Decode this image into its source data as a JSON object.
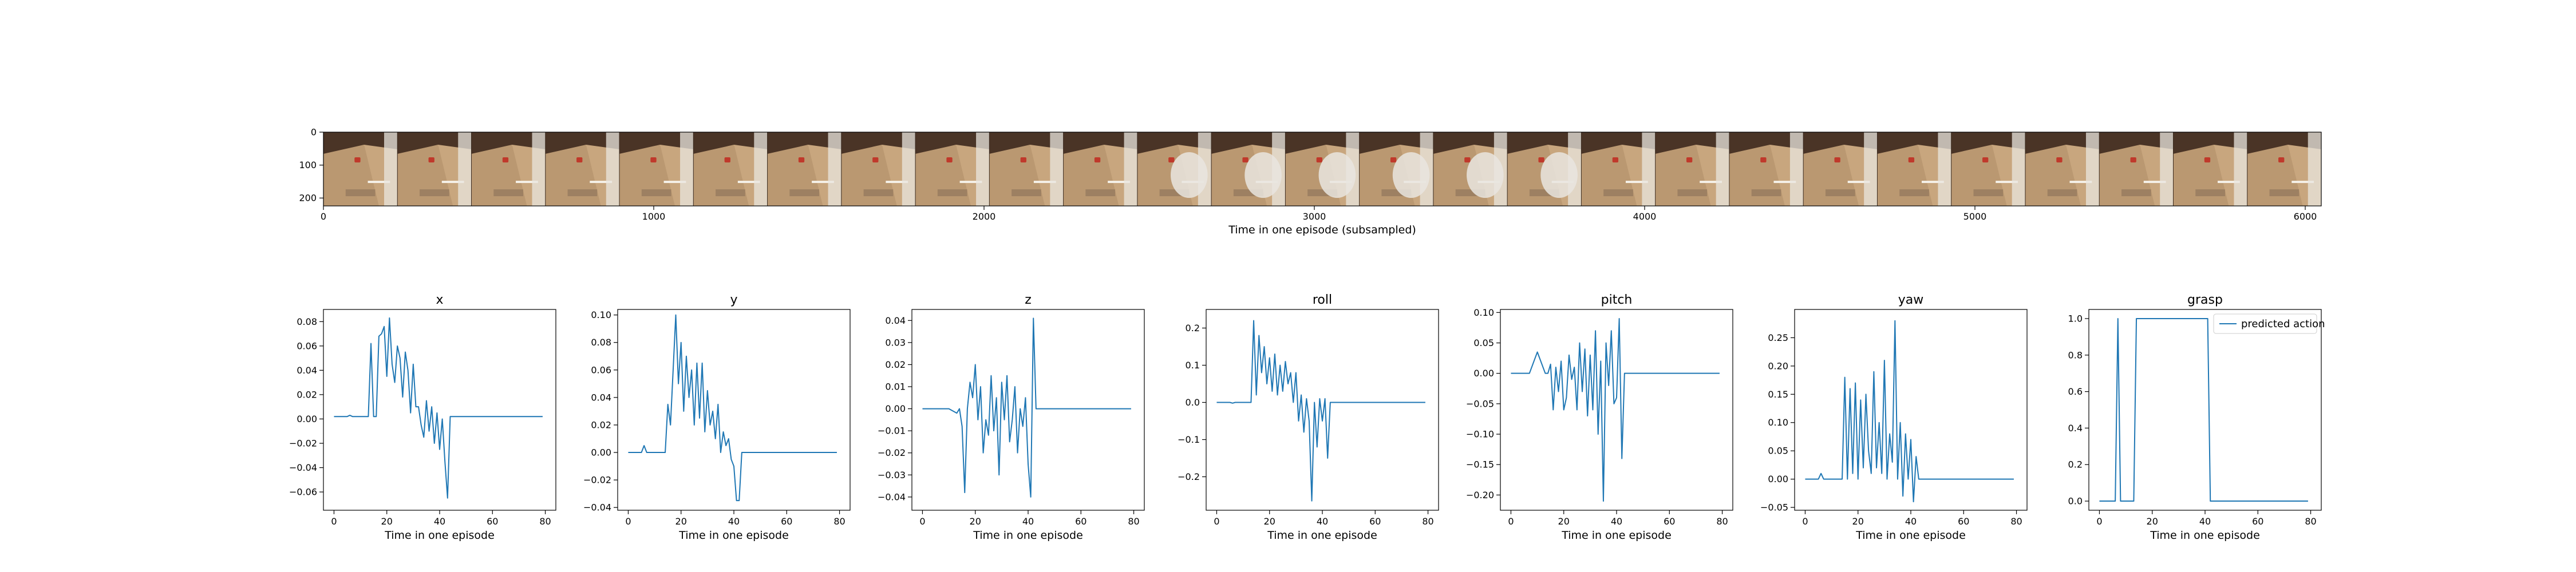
{
  "filmstrip": {
    "xlabel": "Time in one episode (subsampled)",
    "x_ticks": [
      "0",
      "1000",
      "2000",
      "3000",
      "4000",
      "5000",
      "6000"
    ],
    "y_ticks": [
      "0",
      "100",
      "200"
    ],
    "xlim": [
      0,
      6050
    ],
    "ylim": [
      0,
      224
    ],
    "frame_count": 27,
    "frame_description": "robot camera frames of a tabletop scene",
    "colors": {
      "table": "#c8a67e",
      "wall": "#4a3426",
      "arm": "#e9e5df",
      "object": "#c0392b"
    }
  },
  "legend": {
    "label": "predicted action",
    "placement": "upper-right"
  },
  "chart_data": [
    {
      "type": "line",
      "title": "x",
      "xlabel": "Time in one episode",
      "xlim": [
        -4,
        84
      ],
      "ylim": [
        -0.075,
        0.09
      ],
      "x_ticks": [
        0,
        20,
        40,
        60,
        80
      ],
      "y_ticks": [
        -0.06,
        -0.04,
        -0.02,
        0.0,
        0.02,
        0.04,
        0.06,
        0.08
      ],
      "y_tick_labels": [
        "−0.06",
        "−0.04",
        "−0.02",
        "0.00",
        "0.02",
        "0.04",
        "0.06",
        "0.08"
      ],
      "series": [
        {
          "color": "#1f77b4",
          "x": [
            0,
            5,
            6,
            7,
            10,
            13,
            14,
            15,
            16,
            17,
            18,
            19,
            20,
            21,
            22,
            23,
            24,
            25,
            26,
            27,
            28,
            29,
            30,
            31,
            32,
            33,
            34,
            35,
            36,
            37,
            38,
            39,
            40,
            41,
            42,
            43,
            44,
            45,
            46,
            79
          ],
          "values": [
            0.002,
            0.002,
            0.003,
            0.002,
            0.002,
            0.002,
            0.062,
            0.002,
            0.002,
            0.068,
            0.07,
            0.076,
            0.035,
            0.083,
            0.045,
            0.03,
            0.06,
            0.05,
            0.018,
            0.055,
            0.04,
            0.005,
            0.045,
            0.01,
            0.01,
            -0.005,
            -0.015,
            0.015,
            -0.01,
            0.01,
            -0.02,
            0.005,
            -0.025,
            0.0,
            -0.035,
            -0.065,
            0.002,
            0.002,
            0.002,
            0.002
          ]
        }
      ]
    },
    {
      "type": "line",
      "title": "y",
      "xlabel": "Time in one episode",
      "xlim": [
        -4,
        84
      ],
      "ylim": [
        -0.042,
        0.104
      ],
      "x_ticks": [
        0,
        20,
        40,
        60,
        80
      ],
      "y_ticks": [
        -0.04,
        -0.02,
        0.0,
        0.02,
        0.04,
        0.06,
        0.08,
        0.1
      ],
      "y_tick_labels": [
        "−0.04",
        "−0.02",
        "0.00",
        "0.02",
        "0.04",
        "0.06",
        "0.08",
        "0.10"
      ],
      "series": [
        {
          "color": "#1f77b4",
          "x": [
            0,
            5,
            6,
            7,
            10,
            13,
            14,
            15,
            16,
            17,
            18,
            19,
            20,
            21,
            22,
            23,
            24,
            25,
            26,
            27,
            28,
            29,
            30,
            31,
            32,
            33,
            34,
            35,
            36,
            37,
            38,
            39,
            40,
            41,
            42,
            43,
            44,
            45,
            46,
            79
          ],
          "values": [
            0.0,
            0.0,
            0.005,
            0.0,
            0.0,
            0.0,
            0.0,
            0.035,
            0.02,
            0.06,
            0.1,
            0.05,
            0.08,
            0.03,
            0.07,
            0.04,
            0.06,
            0.02,
            0.065,
            0.025,
            0.065,
            0.015,
            0.045,
            0.02,
            0.03,
            0.01,
            0.035,
            0.0,
            0.015,
            0.005,
            0.01,
            -0.005,
            -0.01,
            -0.035,
            -0.035,
            0.0,
            0.0,
            0.0,
            0.0,
            0.0
          ]
        }
      ]
    },
    {
      "type": "line",
      "title": "z",
      "xlabel": "Time in one episode",
      "xlim": [
        -4,
        84
      ],
      "ylim": [
        -0.046,
        0.045
      ],
      "x_ticks": [
        0,
        20,
        40,
        60,
        80
      ],
      "y_ticks": [
        -0.04,
        -0.03,
        -0.02,
        -0.01,
        0.0,
        0.01,
        0.02,
        0.03,
        0.04
      ],
      "y_tick_labels": [
        "−0.04",
        "−0.03",
        "−0.02",
        "−0.01",
        "0.00",
        "0.01",
        "0.02",
        "0.03",
        "0.04"
      ],
      "series": [
        {
          "color": "#1f77b4",
          "x": [
            0,
            5,
            10,
            13,
            14,
            15,
            16,
            17,
            18,
            19,
            20,
            21,
            22,
            23,
            24,
            25,
            26,
            27,
            28,
            29,
            30,
            31,
            32,
            33,
            34,
            35,
            36,
            37,
            38,
            39,
            40,
            41,
            42,
            43,
            44,
            45,
            46,
            79
          ],
          "values": [
            0.0,
            0.0,
            0.0,
            -0.002,
            0.0,
            -0.008,
            -0.038,
            0.0,
            0.012,
            0.005,
            0.02,
            -0.005,
            0.01,
            -0.02,
            -0.005,
            -0.012,
            0.015,
            -0.01,
            0.005,
            -0.03,
            0.012,
            -0.005,
            0.015,
            -0.015,
            -0.005,
            0.01,
            -0.02,
            0.0,
            -0.008,
            0.005,
            -0.025,
            -0.04,
            0.041,
            0.0,
            0.0,
            0.0,
            0.0,
            0.0
          ]
        }
      ]
    },
    {
      "type": "line",
      "title": "roll",
      "xlabel": "Time in one episode",
      "xlim": [
        -4,
        84
      ],
      "ylim": [
        -0.29,
        0.25
      ],
      "x_ticks": [
        0,
        20,
        40,
        60,
        80
      ],
      "y_ticks": [
        -0.2,
        -0.1,
        0.0,
        0.1,
        0.2
      ],
      "y_tick_labels": [
        "−0.2",
        "−0.1",
        "0.0",
        "0.1",
        "0.2"
      ],
      "series": [
        {
          "color": "#1f77b4",
          "x": [
            0,
            5,
            6,
            7,
            10,
            13,
            14,
            15,
            16,
            17,
            18,
            19,
            20,
            21,
            22,
            23,
            24,
            25,
            26,
            27,
            28,
            29,
            30,
            31,
            32,
            33,
            34,
            35,
            36,
            37,
            38,
            39,
            40,
            41,
            42,
            43,
            44,
            45,
            46,
            79
          ],
          "values": [
            0.0,
            0.0,
            -0.002,
            0.0,
            0.0,
            0.0,
            0.22,
            0.02,
            0.18,
            0.08,
            0.15,
            0.05,
            0.12,
            0.03,
            0.13,
            0.02,
            0.1,
            0.03,
            0.11,
            0.05,
            0.08,
            0.0,
            0.08,
            -0.05,
            0.02,
            -0.08,
            0.01,
            -0.05,
            -0.265,
            0.0,
            -0.12,
            0.01,
            -0.05,
            0.01,
            -0.15,
            0.0,
            0.0,
            0.0,
            0.0,
            0.0
          ]
        }
      ]
    },
    {
      "type": "line",
      "title": "pitch",
      "xlabel": "Time in one episode",
      "xlim": [
        -4,
        84
      ],
      "ylim": [
        -0.225,
        0.105
      ],
      "x_ticks": [
        0,
        20,
        40,
        60,
        80
      ],
      "y_ticks": [
        -0.2,
        -0.15,
        -0.1,
        -0.05,
        0.0,
        0.05,
        0.1
      ],
      "y_tick_labels": [
        "−0.20",
        "−0.15",
        "−0.10",
        "−0.05",
        "0.00",
        "0.05",
        "0.10"
      ],
      "series": [
        {
          "color": "#1f77b4",
          "x": [
            0,
            5,
            6,
            7,
            10,
            13,
            14,
            15,
            16,
            17,
            18,
            19,
            20,
            21,
            22,
            23,
            24,
            25,
            26,
            27,
            28,
            29,
            30,
            31,
            32,
            33,
            34,
            35,
            36,
            37,
            38,
            39,
            40,
            41,
            42,
            43,
            44,
            45,
            46,
            79
          ],
          "values": [
            0.0,
            0.0,
            0.0,
            0.0,
            0.035,
            0.0,
            0.0,
            0.015,
            -0.06,
            0.01,
            -0.03,
            0.02,
            -0.06,
            -0.04,
            0.03,
            -0.01,
            0.01,
            -0.06,
            0.05,
            -0.03,
            0.04,
            -0.07,
            0.03,
            -0.06,
            0.07,
            -0.1,
            0.02,
            -0.21,
            0.05,
            -0.02,
            0.07,
            -0.05,
            -0.04,
            0.09,
            -0.14,
            0.0,
            0.0,
            0.0,
            0.0,
            0.0
          ]
        }
      ]
    },
    {
      "type": "line",
      "title": "yaw",
      "xlabel": "Time in one episode",
      "xlim": [
        -4,
        84
      ],
      "ylim": [
        -0.055,
        0.3
      ],
      "x_ticks": [
        0,
        20,
        40,
        60,
        80
      ],
      "y_ticks": [
        -0.05,
        0.0,
        0.05,
        0.1,
        0.15,
        0.2,
        0.25
      ],
      "y_tick_labels": [
        "−0.05",
        "0.00",
        "0.05",
        "0.10",
        "0.15",
        "0.20",
        "0.25"
      ],
      "series": [
        {
          "color": "#1f77b4",
          "x": [
            0,
            5,
            6,
            7,
            10,
            13,
            14,
            15,
            16,
            17,
            18,
            19,
            20,
            21,
            22,
            23,
            24,
            25,
            26,
            27,
            28,
            29,
            30,
            31,
            32,
            33,
            34,
            35,
            36,
            37,
            38,
            39,
            40,
            41,
            42,
            43,
            44,
            45,
            46,
            79
          ],
          "values": [
            0.0,
            0.0,
            0.01,
            0.0,
            0.0,
            0.0,
            0.0,
            0.18,
            0.0,
            0.16,
            0.01,
            0.17,
            0.0,
            0.14,
            0.02,
            0.15,
            0.05,
            0.01,
            0.19,
            0.02,
            0.1,
            0.01,
            0.21,
            0.0,
            0.08,
            0.03,
            0.28,
            0.0,
            0.1,
            -0.03,
            0.08,
            0.0,
            0.07,
            -0.04,
            0.04,
            0.0,
            0.0,
            0.0,
            0.0,
            0.0
          ]
        }
      ]
    },
    {
      "type": "line",
      "title": "grasp",
      "xlabel": "Time in one episode",
      "xlim": [
        -4,
        84
      ],
      "ylim": [
        -0.05,
        1.05
      ],
      "x_ticks": [
        0,
        20,
        40,
        60,
        80
      ],
      "y_ticks": [
        0.0,
        0.2,
        0.4,
        0.6,
        0.8,
        1.0
      ],
      "y_tick_labels": [
        "0.0",
        "0.2",
        "0.4",
        "0.6",
        "0.8",
        "1.0"
      ],
      "legend": true,
      "series": [
        {
          "color": "#1f77b4",
          "x": [
            0,
            6,
            7,
            8,
            13,
            14,
            40,
            41,
            42,
            79
          ],
          "values": [
            0,
            0,
            1,
            0,
            0,
            1,
            1,
            1,
            0,
            0
          ]
        }
      ]
    }
  ]
}
